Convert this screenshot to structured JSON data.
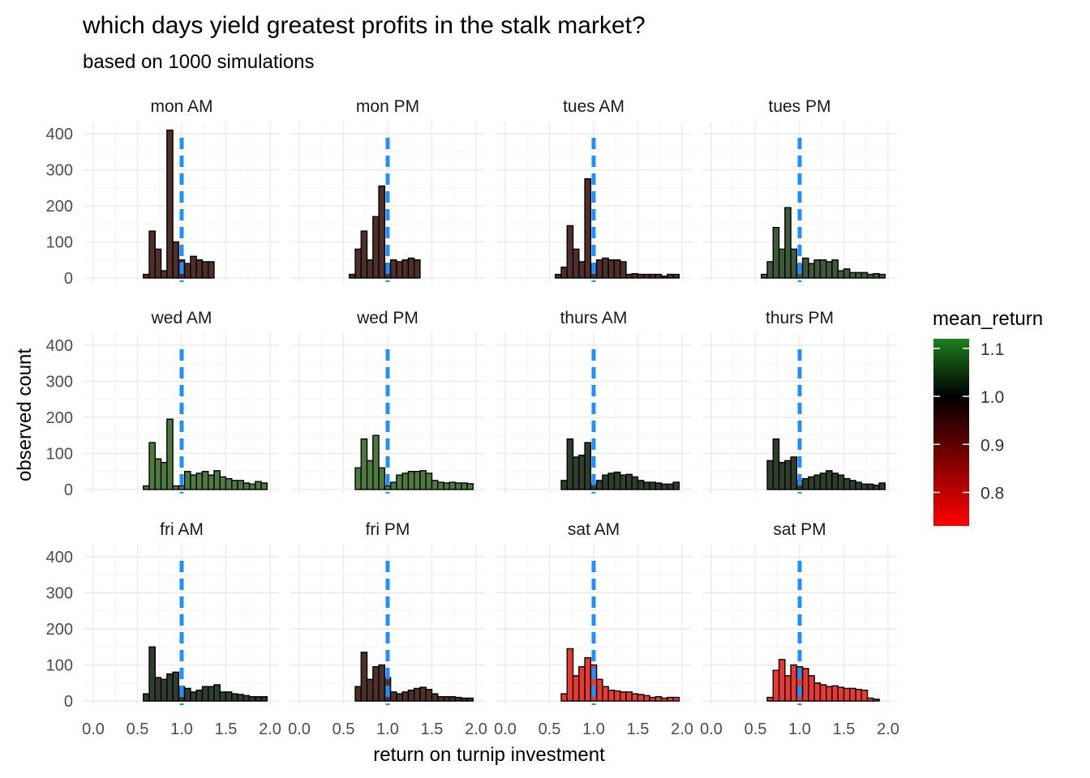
{
  "chart_data": {
    "type": "bar",
    "title": "which days yield greatest profits in the stalk market?",
    "subtitle": "based on 1000 simulations",
    "xlabel": "return on turnip investment",
    "ylabel": "observed count",
    "xlim": [
      0.0,
      2.0
    ],
    "ylim": [
      0,
      400
    ],
    "x_ticks": [
      0.0,
      0.5,
      1.0,
      1.5,
      2.0
    ],
    "y_ticks": [
      0,
      100,
      200,
      300,
      400
    ],
    "reference_line": {
      "x": 1.0,
      "style": "dashed",
      "color": "#1E90FF"
    },
    "grid": true,
    "legend": {
      "title": "mean_return",
      "placement": "right",
      "breaks": [
        1.1,
        1.0,
        0.9,
        0.8
      ],
      "low_color": "#FF0000",
      "mid_color": "#000000",
      "high_color": "#1E7F1E",
      "range": [
        0.73,
        1.12
      ]
    },
    "bin_centers": [
      0.0,
      0.0667,
      0.1333,
      0.2,
      0.2667,
      0.3333,
      0.4,
      0.4667,
      0.5333,
      0.6,
      0.6667,
      0.7333,
      0.8,
      0.8667,
      0.9333,
      1.0,
      1.0667,
      1.1333,
      1.2,
      1.2667,
      1.3333,
      1.4,
      1.4667,
      1.5333,
      1.6,
      1.6667,
      1.7333,
      1.8,
      1.8667,
      1.9333
    ],
    "panels": [
      {
        "name": "mon AM",
        "color": "#4E2F2A",
        "counts": [
          0,
          0,
          0,
          0,
          0,
          0,
          0,
          0,
          0,
          10,
          130,
          80,
          20,
          410,
          100,
          50,
          40,
          60,
          50,
          45,
          45,
          0,
          0,
          0,
          0,
          0,
          0,
          0,
          0,
          0
        ]
      },
      {
        "name": "mon PM",
        "color": "#4E2F2A",
        "counts": [
          0,
          0,
          0,
          0,
          0,
          0,
          0,
          0,
          0,
          10,
          80,
          130,
          50,
          170,
          255,
          40,
          50,
          45,
          50,
          55,
          50,
          0,
          0,
          0,
          0,
          0,
          0,
          0,
          0,
          0
        ]
      },
      {
        "name": "tues AM",
        "color": "#4E2F2A",
        "counts": [
          0,
          0,
          0,
          0,
          0,
          0,
          0,
          0,
          0,
          10,
          30,
          145,
          80,
          45,
          275,
          40,
          50,
          55,
          50,
          50,
          45,
          10,
          12,
          10,
          10,
          10,
          10,
          5,
          10,
          10
        ]
      },
      {
        "name": "tues PM",
        "color": "#3F5A3A",
        "counts": [
          0,
          0,
          0,
          0,
          0,
          0,
          0,
          0,
          0,
          10,
          45,
          140,
          80,
          195,
          80,
          35,
          55,
          40,
          50,
          50,
          45,
          50,
          20,
          25,
          15,
          15,
          15,
          10,
          12,
          10
        ]
      },
      {
        "name": "wed AM",
        "color": "#4E7A40",
        "counts": [
          0,
          0,
          0,
          0,
          0,
          0,
          0,
          0,
          0,
          10,
          130,
          85,
          75,
          195,
          10,
          10,
          50,
          40,
          45,
          50,
          40,
          52,
          35,
          30,
          25,
          25,
          18,
          15,
          22,
          18
        ]
      },
      {
        "name": "wed PM",
        "color": "#4E7A40",
        "counts": [
          0,
          0,
          0,
          0,
          0,
          0,
          0,
          0,
          0,
          0,
          60,
          140,
          80,
          150,
          60,
          10,
          20,
          40,
          45,
          50,
          50,
          52,
          45,
          25,
          20,
          18,
          20,
          18,
          18,
          16
        ]
      },
      {
        "name": "thurs AM",
        "color": "#2F3D2C",
        "counts": [
          0,
          0,
          0,
          0,
          0,
          0,
          0,
          0,
          0,
          0,
          25,
          140,
          90,
          95,
          130,
          15,
          25,
          40,
          45,
          48,
          40,
          42,
          35,
          25,
          20,
          20,
          18,
          15,
          15,
          20
        ]
      },
      {
        "name": "thurs PM",
        "color": "#2F3D2C",
        "counts": [
          0,
          0,
          0,
          0,
          0,
          0,
          0,
          0,
          0,
          0,
          80,
          140,
          75,
          80,
          90,
          25,
          30,
          35,
          40,
          45,
          52,
          45,
          40,
          30,
          25,
          20,
          15,
          15,
          12,
          18
        ]
      },
      {
        "name": "fri AM",
        "color": "#2F3D2C",
        "counts": [
          0,
          0,
          0,
          0,
          0,
          0,
          0,
          0,
          0,
          20,
          150,
          65,
          60,
          75,
          80,
          40,
          35,
          25,
          30,
          40,
          40,
          45,
          25,
          25,
          20,
          18,
          15,
          12,
          12,
          12
        ]
      },
      {
        "name": "fri PM",
        "color": "#4E2F2A",
        "counts": [
          0,
          0,
          0,
          0,
          0,
          0,
          0,
          0,
          0,
          0,
          40,
          135,
          60,
          95,
          100,
          65,
          25,
          20,
          25,
          30,
          35,
          38,
          32,
          20,
          12,
          12,
          12,
          10,
          8,
          8
        ]
      },
      {
        "name": "sat AM",
        "color": "#E83A33",
        "counts": [
          0,
          0,
          0,
          0,
          0,
          0,
          0,
          0,
          0,
          0,
          20,
          145,
          70,
          95,
          120,
          100,
          60,
          40,
          30,
          28,
          25,
          25,
          20,
          18,
          15,
          10,
          12,
          8,
          10,
          10
        ]
      },
      {
        "name": "sat PM",
        "color": "#E83A33",
        "counts": [
          0,
          0,
          0,
          0,
          0,
          0,
          0,
          0,
          0,
          0,
          10,
          85,
          115,
          70,
          100,
          95,
          90,
          70,
          50,
          45,
          40,
          42,
          38,
          35,
          35,
          32,
          30,
          8,
          5,
          0
        ]
      }
    ]
  }
}
